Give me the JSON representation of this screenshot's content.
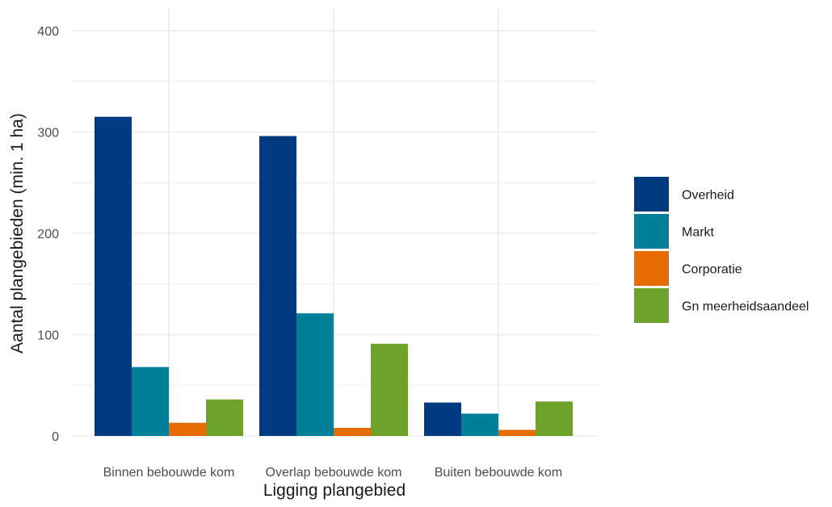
{
  "chart_data": {
    "type": "bar",
    "title": "",
    "xlabel": "Ligging plangebied",
    "ylabel": "Aantal plangebieden (min. 1 ha)",
    "ylim": [
      0,
      420
    ],
    "yticks": [
      0,
      100,
      200,
      300,
      400
    ],
    "grid": true,
    "legend_position": "right",
    "categories": [
      "Binnen bebouwde kom",
      "Overlap bebouwde kom",
      "Buiten bebouwde kom"
    ],
    "series": [
      {
        "name": "Overheid",
        "color": "#003a80",
        "values": [
          315,
          296,
          33
        ]
      },
      {
        "name": "Markt",
        "color": "#007f99",
        "values": [
          68,
          121,
          22
        ]
      },
      {
        "name": "Corporatie",
        "color": "#e56b00",
        "values": [
          13,
          8,
          6
        ]
      },
      {
        "name": "Gn meerheidsaandeel",
        "color": "#6ea22a",
        "values": [
          36,
          91,
          34
        ]
      }
    ]
  }
}
